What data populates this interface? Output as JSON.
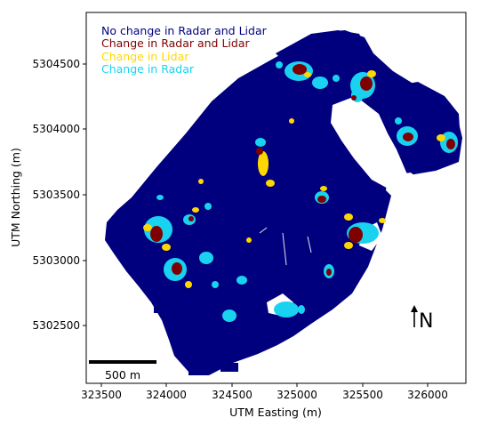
{
  "map": {
    "x_axis": {
      "label": "UTM Easting (m)",
      "ticks": [
        "323500",
        "324000",
        "324500",
        "325000",
        "325500",
        "326000"
      ]
    },
    "y_axis": {
      "label": "UTM Northing (m)",
      "ticks": [
        "5304500",
        "5304000",
        "5303500",
        "5303000",
        "5302500"
      ]
    },
    "legend": [
      {
        "label": "No change in Radar and Lidar",
        "color": "#00007f"
      },
      {
        "label": "Change in Radar and Lidar",
        "color": "#7f0000"
      },
      {
        "label": "Change in Lidar",
        "color": "#ffd700"
      },
      {
        "label": "Change in Radar",
        "color": "#18d2f0"
      }
    ],
    "scale_bar": {
      "label": "500 m"
    },
    "north_arrow": {
      "label": "N"
    },
    "colors": {
      "no_change": "#00007f",
      "both_change": "#7f0000",
      "lidar_change": "#ffd700",
      "radar_change": "#18d2f0"
    }
  }
}
